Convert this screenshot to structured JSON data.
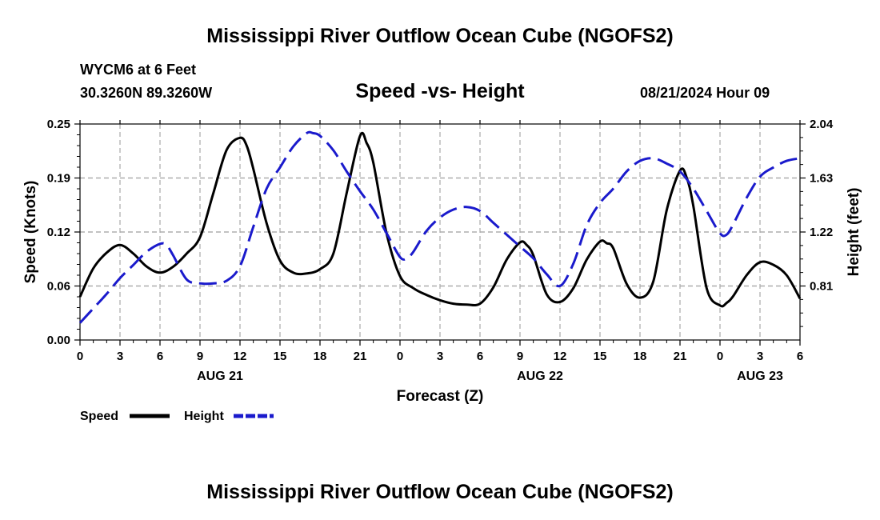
{
  "page": {
    "title_top": "Mississippi River Outflow Ocean Cube (NGOFS2)",
    "title_bottom": "Mississippi River Outflow Ocean Cube (NGOFS2)",
    "station": "WYCM6 at 6 Feet",
    "coords": "30.3260N  89.3260W",
    "subtitle": "Speed -vs- Height",
    "datetime": "08/21/2024 Hour 09"
  },
  "colors": {
    "speed": "#000000",
    "height": "#1a1acc",
    "grid": "#aaaaaa"
  },
  "chart_data": {
    "type": "line",
    "title": "Speed -vs- Height",
    "xlabel": "Forecast (Z)",
    "ylabel_left": "Speed (Knots)",
    "ylabel_right": "Height (feet)",
    "x_range_hours": [
      0,
      54
    ],
    "x_ticks": [
      {
        "h": 0,
        "label": "0"
      },
      {
        "h": 3,
        "label": "3"
      },
      {
        "h": 6,
        "label": "6"
      },
      {
        "h": 9,
        "label": "9"
      },
      {
        "h": 12,
        "label": "12"
      },
      {
        "h": 15,
        "label": "15"
      },
      {
        "h": 18,
        "label": "18"
      },
      {
        "h": 21,
        "label": "21"
      },
      {
        "h": 24,
        "label": "0"
      },
      {
        "h": 27,
        "label": "3"
      },
      {
        "h": 30,
        "label": "6"
      },
      {
        "h": 33,
        "label": "9"
      },
      {
        "h": 36,
        "label": "12"
      },
      {
        "h": 39,
        "label": "15"
      },
      {
        "h": 42,
        "label": "18"
      },
      {
        "h": 45,
        "label": "21"
      },
      {
        "h": 48,
        "label": "0"
      },
      {
        "h": 51,
        "label": "3"
      },
      {
        "h": 54,
        "label": "6"
      }
    ],
    "date_labels": [
      {
        "h": 10.5,
        "label": "AUG 21"
      },
      {
        "h": 34.5,
        "label": "AUG 22"
      },
      {
        "h": 51,
        "label": "AUG 23"
      }
    ],
    "ylim_left": [
      0,
      0.25
    ],
    "yticks_left": [
      {
        "v": 0,
        "label": "0.00"
      },
      {
        "v": 0.0625,
        "label": "0.06"
      },
      {
        "v": 0.125,
        "label": "0.12"
      },
      {
        "v": 0.1875,
        "label": "0.19"
      },
      {
        "v": 0.25,
        "label": "0.25"
      }
    ],
    "ylim_right": [
      0.4,
      2.04
    ],
    "yticks_right": [
      {
        "v": 0.81,
        "label": "0.81"
      },
      {
        "v": 1.22,
        "label": "1.22"
      },
      {
        "v": 1.63,
        "label": "1.63"
      },
      {
        "v": 2.04,
        "label": "2.04"
      }
    ],
    "legend": [
      {
        "label": "Speed",
        "style": "solid"
      },
      {
        "label": "Height",
        "style": "dashed"
      }
    ],
    "series": [
      {
        "name": "Speed",
        "axis": "left",
        "style": "solid",
        "x": [
          0,
          1,
          2,
          3,
          4,
          5,
          6,
          7,
          8,
          9,
          10,
          11,
          12,
          12.5,
          13,
          14,
          15,
          16,
          17,
          18,
          19,
          20,
          21,
          21.5,
          22,
          23,
          24,
          25,
          26,
          27,
          28,
          29,
          30,
          31,
          32,
          33,
          33.5,
          34,
          35,
          36,
          37,
          38,
          39,
          39.5,
          40,
          41,
          42,
          43,
          44,
          45,
          45.5,
          46,
          47,
          48,
          48.5,
          49,
          50,
          51,
          52,
          53,
          54
        ],
        "y": [
          0.05,
          0.083,
          0.101,
          0.11,
          0.1,
          0.085,
          0.078,
          0.085,
          0.1,
          0.119,
          0.17,
          0.22,
          0.234,
          0.225,
          0.198,
          0.135,
          0.092,
          0.078,
          0.077,
          0.082,
          0.1,
          0.17,
          0.236,
          0.228,
          0.205,
          0.123,
          0.074,
          0.06,
          0.052,
          0.046,
          0.042,
          0.041,
          0.042,
          0.061,
          0.093,
          0.113,
          0.11,
          0.098,
          0.053,
          0.044,
          0.06,
          0.093,
          0.114,
          0.112,
          0.106,
          0.065,
          0.049,
          0.068,
          0.15,
          0.196,
          0.188,
          0.155,
          0.06,
          0.04,
          0.043,
          0.051,
          0.075,
          0.09,
          0.087,
          0.075,
          0.048
        ]
      },
      {
        "name": "Height",
        "axis": "right",
        "style": "dashed",
        "x": [
          0,
          1,
          2,
          3,
          4,
          5,
          6,
          6.5,
          7,
          8,
          9,
          10,
          11,
          12,
          13,
          14,
          15,
          16,
          17,
          17.5,
          18,
          19,
          20,
          21,
          22,
          23,
          24,
          24.5,
          25,
          26,
          27,
          28,
          29,
          30,
          31,
          32,
          33,
          34,
          35,
          36,
          37,
          38,
          39,
          40,
          41,
          42,
          43,
          44,
          45,
          46,
          47,
          48,
          48.5,
          49,
          50,
          51,
          52,
          53,
          54
        ],
        "y": [
          0.53,
          0.64,
          0.75,
          0.87,
          0.97,
          1.07,
          1.13,
          1.12,
          1.04,
          0.86,
          0.83,
          0.83,
          0.85,
          0.96,
          1.26,
          1.55,
          1.71,
          1.87,
          1.97,
          1.97,
          1.95,
          1.84,
          1.68,
          1.53,
          1.39,
          1.21,
          1.03,
          1.02,
          1.07,
          1.23,
          1.33,
          1.39,
          1.41,
          1.38,
          1.29,
          1.2,
          1.11,
          1.02,
          0.9,
          0.81,
          0.98,
          1.27,
          1.44,
          1.55,
          1.68,
          1.76,
          1.78,
          1.74,
          1.68,
          1.55,
          1.38,
          1.21,
          1.2,
          1.28,
          1.48,
          1.64,
          1.71,
          1.76,
          1.78
        ]
      }
    ]
  }
}
